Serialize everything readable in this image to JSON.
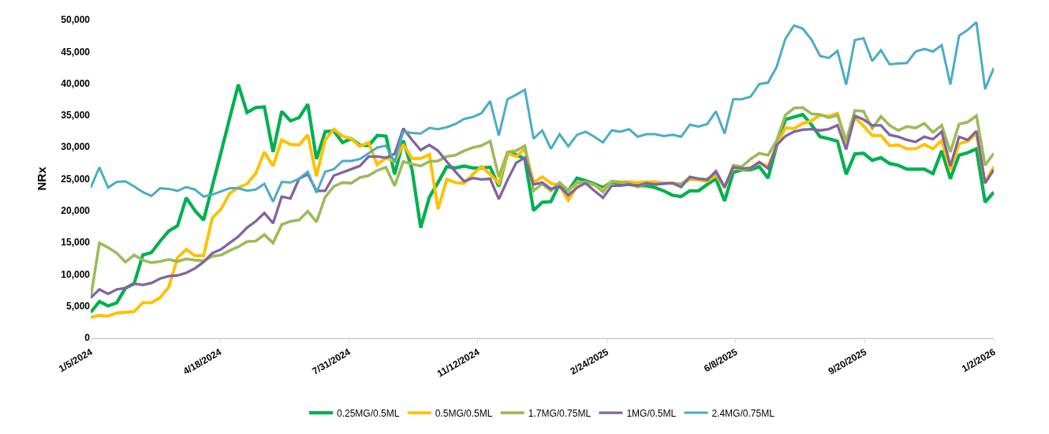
{
  "chart_data": {
    "type": "line",
    "ylabel": "NRx",
    "legend": "bottom",
    "grid": false,
    "marker": "none",
    "line_style": "solid",
    "x": [
      "2024-01-05",
      "2024-01-12",
      "2024-01-19",
      "2024-01-26",
      "2024-02-02",
      "2024-02-09",
      "2024-02-16",
      "2024-02-23",
      "2024-03-01",
      "2024-03-08",
      "2024-03-15",
      "2024-03-22",
      "2024-03-29",
      "2024-04-05",
      "2024-04-12",
      "2024-04-19",
      "2024-04-26",
      "2024-05-03",
      "2024-05-10",
      "2024-05-17",
      "2024-05-24",
      "2024-05-31",
      "2024-06-07",
      "2024-06-14",
      "2024-06-21",
      "2024-06-28",
      "2024-07-05",
      "2024-07-12",
      "2024-07-19",
      "2024-07-26",
      "2024-08-02",
      "2024-08-09",
      "2024-08-16",
      "2024-08-23",
      "2024-08-30",
      "2024-09-06",
      "2024-09-13",
      "2024-09-20",
      "2024-09-27",
      "2024-10-04",
      "2024-10-11",
      "2024-10-18",
      "2024-10-25",
      "2024-11-01",
      "2024-11-08",
      "2024-11-15",
      "2024-11-22",
      "2024-11-29",
      "2024-12-06",
      "2024-12-13",
      "2024-12-20",
      "2024-12-27",
      "2025-01-03",
      "2025-01-10",
      "2025-01-17",
      "2025-01-24",
      "2025-01-31",
      "2025-02-07",
      "2025-02-14",
      "2025-02-21",
      "2025-02-28",
      "2025-03-07",
      "2025-03-14",
      "2025-03-21",
      "2025-03-28",
      "2025-04-04",
      "2025-04-11",
      "2025-04-18",
      "2025-04-25",
      "2025-05-02",
      "2025-05-09",
      "2025-05-16",
      "2025-05-23",
      "2025-05-30",
      "2025-06-06",
      "2025-06-13",
      "2025-06-20",
      "2025-06-27",
      "2025-07-04",
      "2025-07-11",
      "2025-07-18",
      "2025-07-25",
      "2025-08-01",
      "2025-08-08",
      "2025-08-15",
      "2025-08-22",
      "2025-08-29",
      "2025-09-05",
      "2025-09-12",
      "2025-09-19",
      "2025-09-26",
      "2025-10-03",
      "2025-10-10",
      "2025-10-17",
      "2025-10-24",
      "2025-10-31",
      "2025-11-07",
      "2025-11-14",
      "2025-11-21",
      "2025-11-28",
      "2025-12-05",
      "2025-12-12",
      "2025-12-19",
      "2025-12-26",
      "2026-01-02"
    ],
    "xlim": [
      "2024-01-05",
      "2026-01-02"
    ],
    "xticks": [
      {
        "value": "2024-01-05",
        "label": "1/5/2024"
      },
      {
        "value": "2024-04-18",
        "label": "4/18/2024"
      },
      {
        "value": "2024-07-31",
        "label": "7/31/2024"
      },
      {
        "value": "2024-11-12",
        "label": "11/12/2024"
      },
      {
        "value": "2025-02-24",
        "label": "2/24/2025"
      },
      {
        "value": "2025-06-08",
        "label": "6/8/2025"
      },
      {
        "value": "2025-09-20",
        "label": "9/20/2025"
      },
      {
        "value": "2026-01-02",
        "label": "1/2/2026"
      }
    ],
    "ylim": [
      0,
      50000
    ],
    "yticks": [
      0,
      {
        "value": 5000,
        "label": "5,000"
      },
      {
        "value": 10000,
        "label": "10,000"
      },
      {
        "value": 15000,
        "label": "15,000"
      },
      {
        "value": 20000,
        "label": "20,000"
      },
      {
        "value": 25000,
        "label": "25,000"
      },
      {
        "value": 30000,
        "label": "30,000"
      },
      {
        "value": 35000,
        "label": "35,000"
      },
      {
        "value": 40000,
        "label": "40,000"
      },
      {
        "value": 45000,
        "label": "45,000"
      },
      {
        "value": 50000,
        "label": "50,000"
      }
    ],
    "series": [
      {
        "name": "0.25MG/0.5ML",
        "color": "#00b050",
        "values": [
          4000,
          5700,
          5000,
          5500,
          7800,
          8500,
          13000,
          13400,
          15200,
          16800,
          17600,
          22000,
          20000,
          18500,
          23800,
          29100,
          34500,
          39800,
          35400,
          36200,
          36300,
          29200,
          35600,
          34100,
          34600,
          36700,
          28100,
          32400,
          32500,
          30700,
          31300,
          30300,
          30200,
          31800,
          31700,
          25700,
          31000,
          26500,
          17300,
          22100,
          24400,
          26900,
          26700,
          27000,
          26700,
          26700,
          26800,
          23800,
          29000,
          28800,
          28100,
          20000,
          21300,
          21400,
          24200,
          23100,
          25100,
          24700,
          24200,
          23600,
          24500,
          24100,
          24100,
          23900,
          23900,
          23600,
          23100,
          22400,
          22200,
          23100,
          23100,
          24100,
          25000,
          21500,
          26000,
          26400,
          26400,
          26900,
          25100,
          30200,
          34300,
          34700,
          35100,
          33500,
          31600,
          31300,
          30900,
          25700,
          28900,
          29000,
          27900,
          28300,
          27400,
          27100,
          26500,
          26500,
          26500,
          25800,
          29400,
          25000,
          28700,
          29100,
          29700,
          21300,
          22900
        ]
      },
      {
        "name": "0.5MG/0.5ML",
        "color": "#ffc000",
        "values": [
          3200,
          3500,
          3400,
          3900,
          4000,
          4100,
          5500,
          5500,
          6300,
          8000,
          12600,
          13900,
          12900,
          12900,
          18800,
          20200,
          22700,
          23600,
          24200,
          25800,
          29200,
          27000,
          31100,
          30400,
          30300,
          31900,
          25400,
          31100,
          32800,
          31700,
          31300,
          30100,
          30700,
          27200,
          28300,
          27700,
          30400,
          28200,
          28200,
          28800,
          20200,
          24900,
          24400,
          24300,
          25700,
          26900,
          25700,
          24300,
          29000,
          28500,
          29700,
          24400,
          25300,
          24300,
          23900,
          21600,
          23800,
          24400,
          24000,
          23200,
          24600,
          24500,
          24500,
          24400,
          24500,
          24500,
          24300,
          24300,
          24100,
          24900,
          24800,
          24600,
          25500,
          23700,
          26700,
          26500,
          26700,
          27600,
          26900,
          30200,
          33000,
          32900,
          33700,
          34100,
          35000,
          34800,
          35300,
          30600,
          34600,
          33300,
          31800,
          31800,
          30200,
          30300,
          29700,
          29700,
          30400,
          29700,
          31000,
          26400,
          30500,
          30900,
          32100,
          24400,
          26900
        ]
      },
      {
        "name": "1.7MG/0.75ML",
        "color": "#9bbb59",
        "values": [
          6300,
          14900,
          14200,
          13300,
          11900,
          13000,
          12200,
          11800,
          12000,
          12300,
          12000,
          12400,
          12200,
          12100,
          12800,
          13000,
          13700,
          14300,
          15100,
          15200,
          16200,
          14900,
          17800,
          18300,
          18500,
          19900,
          18200,
          22100,
          23800,
          24400,
          24300,
          25200,
          25500,
          26300,
          26800,
          23900,
          27700,
          27300,
          27000,
          27700,
          27800,
          28500,
          28700,
          29400,
          29900,
          30200,
          30900,
          25300,
          29200,
          29400,
          30200,
          23100,
          24200,
          23100,
          24400,
          23100,
          24400,
          24500,
          24100,
          22900,
          24600,
          24400,
          24300,
          23700,
          24300,
          24100,
          24300,
          24300,
          24200,
          25200,
          25000,
          24900,
          25900,
          23600,
          27100,
          26900,
          28100,
          29000,
          28700,
          31000,
          35000,
          36100,
          36200,
          35200,
          35100,
          34600,
          35000,
          31000,
          35700,
          35600,
          32900,
          34800,
          33400,
          32600,
          33200,
          33000,
          33700,
          32300,
          33400,
          29200,
          33600,
          33900,
          34900,
          27100,
          29000
        ]
      },
      {
        "name": "1MG/0.5ML",
        "color": "#8064a2",
        "values": [
          6300,
          7600,
          6900,
          7600,
          7800,
          8500,
          8300,
          8600,
          9300,
          9700,
          9800,
          10200,
          10900,
          11900,
          13300,
          13900,
          14900,
          15900,
          17300,
          18300,
          19600,
          18000,
          22200,
          21900,
          25000,
          25700,
          23100,
          23100,
          25500,
          26000,
          26500,
          27000,
          28500,
          28500,
          28300,
          28900,
          32900,
          31100,
          29500,
          30300,
          29400,
          27700,
          26100,
          24600,
          25100,
          24900,
          25000,
          21800,
          24800,
          27500,
          28300,
          24100,
          24400,
          23400,
          23800,
          22400,
          23600,
          24300,
          23100,
          22000,
          23900,
          23900,
          24100,
          23900,
          24300,
          24100,
          24200,
          24300,
          23700,
          25300,
          25000,
          24800,
          26200,
          23700,
          26800,
          26600,
          26700,
          27600,
          26600,
          30300,
          31700,
          32400,
          32700,
          32800,
          32600,
          32800,
          33400,
          29600,
          34900,
          34300,
          33400,
          33400,
          31900,
          31600,
          31100,
          30800,
          31600,
          31200,
          32400,
          27000,
          31600,
          31100,
          32500,
          24300,
          26400
        ]
      },
      {
        "name": "2.4MG/0.75ML",
        "color": "#4bacc6",
        "values": [
          23600,
          26800,
          23600,
          24500,
          24600,
          23800,
          22900,
          22300,
          23500,
          23400,
          23100,
          23700,
          23300,
          22200,
          22500,
          23000,
          23500,
          23500,
          23100,
          23300,
          24200,
          21400,
          24500,
          24400,
          25000,
          26100,
          22800,
          26100,
          26500,
          27800,
          27800,
          28100,
          29000,
          29900,
          30200,
          27600,
          32400,
          32200,
          32100,
          33000,
          32800,
          33100,
          33600,
          34400,
          34700,
          35300,
          37200,
          31800,
          37500,
          38200,
          39000,
          31300,
          32600,
          29700,
          32000,
          30100,
          31900,
          32400,
          31600,
          30700,
          32600,
          32400,
          32800,
          31600,
          32000,
          32000,
          31700,
          31900,
          31600,
          33500,
          33200,
          33600,
          35600,
          32100,
          37500,
          37500,
          37900,
          39900,
          40100,
          42600,
          47000,
          49100,
          48600,
          46900,
          44300,
          44000,
          45100,
          39800,
          46800,
          47100,
          43500,
          45200,
          43000,
          43100,
          43200,
          45000,
          45400,
          45000,
          46000,
          39800,
          47500,
          48400,
          49600,
          39100,
          42400
        ]
      }
    ]
  }
}
